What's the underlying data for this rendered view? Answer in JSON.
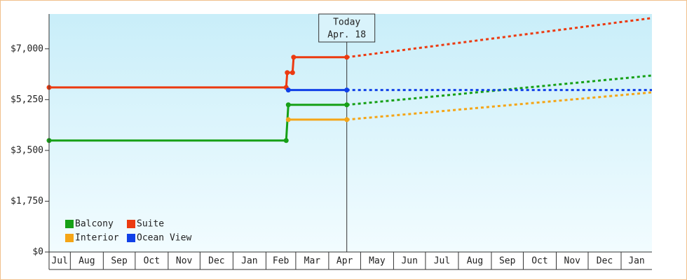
{
  "chart_data": {
    "type": "line",
    "today": {
      "x": 260,
      "label": "Today",
      "date": "Apr. 18"
    },
    "xlim": [
      -20,
      547
    ],
    "xticks": [
      {
        "value": -31,
        "label": "Jul"
      },
      {
        "value": 0,
        "label": "Aug"
      },
      {
        "value": 31,
        "label": "Sep"
      },
      {
        "value": 61,
        "label": "Oct"
      },
      {
        "value": 92,
        "label": "Nov"
      },
      {
        "value": 122,
        "label": "Dec"
      },
      {
        "value": 153,
        "label": "Jan"
      },
      {
        "value": 184,
        "label": "Feb"
      },
      {
        "value": 212,
        "label": "Mar"
      },
      {
        "value": 243,
        "label": "Apr"
      },
      {
        "value": 273,
        "label": "May"
      },
      {
        "value": 304,
        "label": "Jun"
      },
      {
        "value": 334,
        "label": "Jul"
      },
      {
        "value": 365,
        "label": "Aug"
      },
      {
        "value": 396,
        "label": "Sep"
      },
      {
        "value": 426,
        "label": "Oct"
      },
      {
        "value": 457,
        "label": "Nov"
      },
      {
        "value": 487,
        "label": "Dec"
      },
      {
        "value": 518,
        "label": "Jan"
      }
    ],
    "ylim": [
      0,
      8200
    ],
    "yticks": [
      {
        "value": 0,
        "label": "$0"
      },
      {
        "value": 1750,
        "label": "$1,750"
      },
      {
        "value": 3500,
        "label": "$3,500"
      },
      {
        "value": 5250,
        "label": "$5,250"
      },
      {
        "value": 7000,
        "label": "$7,000"
      }
    ],
    "legend": "bottom-left",
    "series": [
      {
        "name": "Balcony",
        "color": "#16a016",
        "x": [
          -20,
          203,
          205,
          260,
          547
        ],
        "values": [
          3840,
          3840,
          5070,
          5070,
          6080
        ]
      },
      {
        "name": "Interior",
        "color": "#f5a516",
        "x": [
          205,
          260,
          547
        ],
        "values": [
          4560,
          4560,
          5500
        ]
      },
      {
        "name": "Suite",
        "color": "#ec3a10",
        "x": [
          -20,
          203,
          204,
          209,
          210,
          260,
          547
        ],
        "values": [
          5670,
          5670,
          6180,
          6180,
          6710,
          6710,
          8060
        ]
      },
      {
        "name": "Ocean View",
        "color": "#1040e8",
        "x": [
          205,
          260,
          547
        ],
        "values": [
          5580,
          5580,
          5580
        ]
      }
    ]
  }
}
